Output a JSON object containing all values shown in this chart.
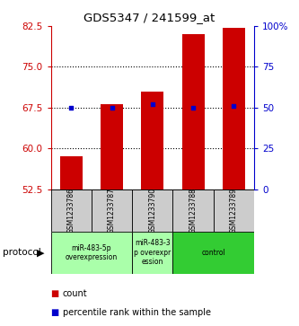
{
  "title": "GDS5347 / 241599_at",
  "samples": [
    "GSM1233786",
    "GSM1233787",
    "GSM1233790",
    "GSM1233788",
    "GSM1233789"
  ],
  "bar_values": [
    58.5,
    68.2,
    70.5,
    81.0,
    82.2
  ],
  "blue_marker_pct": [
    50,
    50,
    52,
    50,
    51
  ],
  "ylim_left": [
    52.5,
    82.5
  ],
  "ylim_right": [
    0,
    100
  ],
  "yticks_left": [
    52.5,
    60,
    67.5,
    75,
    82.5
  ],
  "yticks_right": [
    0,
    25,
    50,
    75,
    100
  ],
  "bar_color": "#cc0000",
  "blue_color": "#0000cc",
  "groups": [
    {
      "indices": [
        0,
        1
      ],
      "label": "miR-483-5p\noverexpression",
      "color": "#aaffaa"
    },
    {
      "indices": [
        2
      ],
      "label": "miR-483-3\np overexpr\nession",
      "color": "#aaffaa"
    },
    {
      "indices": [
        3,
        4
      ],
      "label": "control",
      "color": "#33cc33"
    }
  ],
  "bar_width": 0.55,
  "axis_color_left": "#cc0000",
  "axis_color_right": "#0000cc",
  "sample_box_color": "#cccccc",
  "grid_color": "black"
}
